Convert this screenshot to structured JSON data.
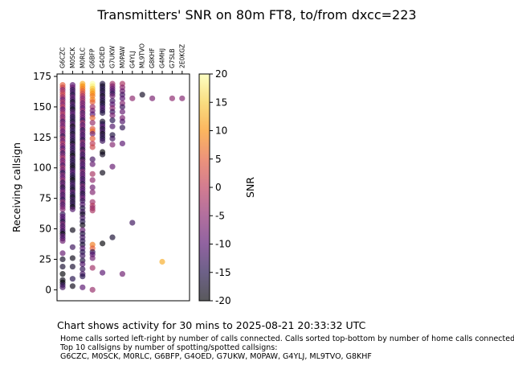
{
  "title": "Transmitters' SNR on 80m FT8, to/from dxcc=223",
  "footer": "Chart shows activity for 30 mins to 2025-08-21 20:33:32 UTC",
  "notes": [
    "Home calls sorted left-right by number of calls connected. Calls sorted top-bottom by number of home calls connected.",
    "Top 10 callsigns by number of spotting/spotted callsigns:",
    "G6CZC, M0SCK, M0RLC, G6BFP, G4OED, G7UKW, M0PAW, G4YLJ, ML9TVO, G8KHF"
  ],
  "chart_data": {
    "type": "scatter",
    "ylabel": "Receiving callsign",
    "ylim": [
      -9,
      177
    ],
    "yticks": [
      0,
      25,
      50,
      75,
      100,
      125,
      150,
      175
    ],
    "x_categories": [
      "G6CZC",
      "M0SCK",
      "M0RLC",
      "G6BFP",
      "G4OED",
      "G7UKW",
      "M0PAW",
      "G4YLJ",
      "ML9TVO",
      "G8KHF",
      "G4MHJ",
      "G7SLB",
      "2E0KGZ"
    ],
    "colorbar": {
      "label": "SNR",
      "min": -20,
      "max": 20,
      "ticks": [
        20,
        15,
        10,
        5,
        0,
        -5,
        -10,
        -15,
        -20
      ],
      "colormap": "inferno"
    },
    "columns": [
      {
        "callsign": "G6CZC",
        "points": [
          [
            168,
            5
          ],
          [
            166,
            2
          ],
          [
            164,
            -5
          ],
          [
            162,
            0
          ],
          [
            160,
            2
          ],
          [
            158,
            -3
          ],
          [
            156,
            -8
          ],
          [
            154,
            -2
          ],
          [
            152,
            -6
          ],
          [
            150,
            0
          ],
          [
            148,
            -10
          ],
          [
            146,
            -4
          ],
          [
            144,
            -1
          ],
          [
            142,
            -7
          ],
          [
            140,
            -3
          ],
          [
            138,
            -12
          ],
          [
            136,
            -5
          ],
          [
            134,
            -8
          ],
          [
            132,
            -2
          ],
          [
            130,
            -10
          ],
          [
            128,
            -6
          ],
          [
            126,
            -14
          ],
          [
            124,
            -3
          ],
          [
            122,
            -9
          ],
          [
            120,
            -1
          ],
          [
            118,
            -7
          ],
          [
            116,
            -11
          ],
          [
            114,
            -4
          ],
          [
            112,
            -13
          ],
          [
            110,
            -6
          ],
          [
            108,
            -2
          ],
          [
            106,
            -9
          ],
          [
            104,
            -5
          ],
          [
            102,
            -12
          ],
          [
            100,
            -3
          ],
          [
            98,
            -8
          ],
          [
            96,
            -15
          ],
          [
            94,
            -6
          ],
          [
            92,
            -10
          ],
          [
            90,
            -4
          ],
          [
            88,
            -14
          ],
          [
            86,
            -8
          ],
          [
            84,
            -17
          ],
          [
            82,
            -11
          ],
          [
            80,
            -7
          ],
          [
            78,
            -13
          ],
          [
            76,
            -9
          ],
          [
            74,
            -15
          ],
          [
            72,
            -5
          ],
          [
            70,
            -12
          ],
          [
            68,
            -8
          ],
          [
            66,
            -6
          ],
          [
            62,
            -14
          ],
          [
            60,
            -10
          ],
          [
            58,
            -11
          ],
          [
            56,
            -16
          ],
          [
            54,
            -7
          ],
          [
            52,
            -13
          ],
          [
            50,
            -9
          ],
          [
            48,
            -14
          ],
          [
            46,
            -20
          ],
          [
            44,
            -10
          ],
          [
            42,
            -12
          ],
          [
            40,
            -8
          ],
          [
            30,
            -9
          ],
          [
            25,
            -18
          ],
          [
            19,
            -17
          ],
          [
            13,
            -20
          ],
          [
            8,
            -19
          ],
          [
            6,
            -20
          ],
          [
            4,
            -14
          ],
          [
            2,
            -12
          ]
        ]
      },
      {
        "callsign": "M0SCK",
        "points": [
          [
            168,
            -10
          ],
          [
            166,
            -8
          ],
          [
            164,
            -14
          ],
          [
            162,
            -12
          ],
          [
            160,
            -16
          ],
          [
            158,
            -9
          ],
          [
            156,
            -13
          ],
          [
            154,
            -18
          ],
          [
            152,
            -11
          ],
          [
            150,
            -15
          ],
          [
            148,
            -19
          ],
          [
            146,
            -12
          ],
          [
            144,
            -10
          ],
          [
            142,
            -16
          ],
          [
            140,
            -14
          ],
          [
            138,
            -17
          ],
          [
            136,
            -11
          ],
          [
            134,
            -20
          ],
          [
            132,
            -13
          ],
          [
            130,
            -15
          ],
          [
            128,
            -18
          ],
          [
            126,
            -12
          ],
          [
            124,
            -14
          ],
          [
            122,
            -16
          ],
          [
            120,
            -19
          ],
          [
            118,
            -11
          ],
          [
            116,
            -15
          ],
          [
            114,
            -13
          ],
          [
            112,
            -17
          ],
          [
            110,
            -20
          ],
          [
            108,
            -12
          ],
          [
            106,
            -16
          ],
          [
            104,
            -14
          ],
          [
            102,
            -18
          ],
          [
            100,
            -19
          ],
          [
            98,
            -13
          ],
          [
            96,
            -11
          ],
          [
            94,
            -15
          ],
          [
            92,
            -17
          ],
          [
            90,
            -20
          ],
          [
            88,
            -14
          ],
          [
            86,
            -12
          ],
          [
            84,
            -16
          ],
          [
            82,
            -18
          ],
          [
            80,
            -10
          ],
          [
            78,
            -15
          ],
          [
            76,
            -19
          ],
          [
            74,
            -13
          ],
          [
            72,
            -17
          ],
          [
            70,
            -14
          ],
          [
            68,
            -20
          ],
          [
            66,
            -11
          ],
          [
            49,
            -19
          ],
          [
            35,
            -13
          ],
          [
            26,
            -19
          ],
          [
            19,
            -17
          ],
          [
            9,
            -15
          ],
          [
            3,
            -19
          ]
        ]
      },
      {
        "callsign": "M0RLC",
        "points": [
          [
            169,
            12
          ],
          [
            167,
            10
          ],
          [
            165,
            8
          ],
          [
            163,
            5
          ],
          [
            161,
            2
          ],
          [
            159,
            -2
          ],
          [
            157,
            -5
          ],
          [
            155,
            -3
          ],
          [
            153,
            -8
          ],
          [
            151,
            -6
          ],
          [
            149,
            -10
          ],
          [
            147,
            -4
          ],
          [
            145,
            -12
          ],
          [
            143,
            -7
          ],
          [
            141,
            -9
          ],
          [
            139,
            -14
          ],
          [
            137,
            -3
          ],
          [
            135,
            -11
          ],
          [
            133,
            -6
          ],
          [
            131,
            -15
          ],
          [
            129,
            -8
          ],
          [
            127,
            -13
          ],
          [
            125,
            -10
          ],
          [
            123,
            -16
          ],
          [
            121,
            -5
          ],
          [
            119,
            -12
          ],
          [
            117,
            -9
          ],
          [
            115,
            -17
          ],
          [
            113,
            -7
          ],
          [
            111,
            -14
          ],
          [
            109,
            -11
          ],
          [
            107,
            -18
          ],
          [
            105,
            -8
          ],
          [
            103,
            -13
          ],
          [
            101,
            -10
          ],
          [
            99,
            -15
          ],
          [
            97,
            -6
          ],
          [
            95,
            -12
          ],
          [
            93,
            -9
          ],
          [
            91,
            -14
          ],
          [
            89,
            -11
          ],
          [
            87,
            -16
          ],
          [
            85,
            -7
          ],
          [
            83,
            -13
          ],
          [
            81,
            -10
          ],
          [
            79,
            -17
          ],
          [
            77,
            -12
          ],
          [
            75,
            -8
          ],
          [
            73,
            -14
          ],
          [
            70,
            -11
          ],
          [
            67,
            -16
          ],
          [
            64,
            -13
          ],
          [
            62,
            -18
          ],
          [
            59,
            -12
          ],
          [
            56,
            -15
          ],
          [
            53,
            -19
          ],
          [
            49,
            -9
          ],
          [
            46,
            -16
          ],
          [
            43,
            -12
          ],
          [
            40,
            -14
          ],
          [
            37,
            -17
          ],
          [
            34,
            -10
          ],
          [
            31,
            -15
          ],
          [
            28,
            -13
          ],
          [
            24,
            -16
          ],
          [
            21,
            -11
          ],
          [
            17,
            -14
          ],
          [
            13,
            -12
          ],
          [
            11,
            -15
          ],
          [
            2,
            -10
          ]
        ]
      },
      {
        "callsign": "G6BFP",
        "points": [
          [
            169,
            20
          ],
          [
            167,
            18
          ],
          [
            165,
            14
          ],
          [
            163,
            12
          ],
          [
            161,
            10
          ],
          [
            159,
            8
          ],
          [
            156,
            9
          ],
          [
            154,
            5
          ],
          [
            150,
            -3
          ],
          [
            147,
            -7
          ],
          [
            144,
            -10
          ],
          [
            141,
            6
          ],
          [
            137,
            -4
          ],
          [
            132,
            4
          ],
          [
            130,
            7
          ],
          [
            128,
            -8
          ],
          [
            124,
            5
          ],
          [
            120,
            0
          ],
          [
            117,
            2
          ],
          [
            107,
            -12
          ],
          [
            103,
            -9
          ],
          [
            95,
            -2
          ],
          [
            90,
            -5
          ],
          [
            84,
            -8
          ],
          [
            80,
            -6
          ],
          [
            72,
            -3
          ],
          [
            69,
            -1
          ],
          [
            67,
            -4
          ],
          [
            65,
            -2
          ],
          [
            37,
            8
          ],
          [
            34,
            5
          ],
          [
            31,
            -14
          ],
          [
            29,
            -10
          ],
          [
            26,
            -8
          ],
          [
            18,
            -3
          ],
          [
            0,
            -4
          ]
        ]
      },
      {
        "callsign": "G4OED",
        "points": [
          [
            169,
            -16
          ],
          [
            167,
            -18
          ],
          [
            165,
            -15
          ],
          [
            163,
            -17
          ],
          [
            161,
            -14
          ],
          [
            159,
            -19
          ],
          [
            157,
            -13
          ],
          [
            155,
            -16
          ],
          [
            153,
            -18
          ],
          [
            151,
            -15
          ],
          [
            149,
            -11
          ],
          [
            147,
            -14
          ],
          [
            145,
            -16
          ],
          [
            138,
            -18
          ],
          [
            136,
            -15
          ],
          [
            134,
            -10
          ],
          [
            132,
            -17
          ],
          [
            130,
            -12
          ],
          [
            128,
            -19
          ],
          [
            126,
            -14
          ],
          [
            124,
            -16
          ],
          [
            122,
            -13
          ],
          [
            113,
            -20
          ],
          [
            111,
            -18
          ],
          [
            96,
            -19
          ],
          [
            38,
            -20
          ],
          [
            14,
            -10
          ]
        ]
      },
      {
        "callsign": "G7UKW",
        "points": [
          [
            169,
            -3
          ],
          [
            167,
            -6
          ],
          [
            165,
            -9
          ],
          [
            163,
            -11
          ],
          [
            161,
            -14
          ],
          [
            159,
            -8
          ],
          [
            155,
            -12
          ],
          [
            152,
            -10
          ],
          [
            149,
            -5
          ],
          [
            146,
            -13
          ],
          [
            143,
            -7
          ],
          [
            139,
            -15
          ],
          [
            134,
            -11
          ],
          [
            127,
            -16
          ],
          [
            124,
            -13
          ],
          [
            119,
            -6
          ],
          [
            101,
            -9
          ],
          [
            43,
            -17
          ]
        ]
      },
      {
        "callsign": "M0PAW",
        "points": [
          [
            169,
            -2
          ],
          [
            166,
            -5
          ],
          [
            163,
            -8
          ],
          [
            160,
            -12
          ],
          [
            157,
            -10
          ],
          [
            153,
            -6
          ],
          [
            150,
            -13
          ],
          [
            146,
            -9
          ],
          [
            141,
            -7
          ],
          [
            138,
            -11
          ],
          [
            133,
            -14
          ],
          [
            120,
            -10
          ],
          [
            13,
            -8
          ]
        ]
      },
      {
        "callsign": "G4YLJ",
        "points": [
          [
            157,
            -5
          ],
          [
            55,
            -13
          ]
        ]
      },
      {
        "callsign": "ML9TVO",
        "points": [
          [
            160,
            -18
          ]
        ]
      },
      {
        "callsign": "G8KHF",
        "points": [
          [
            157,
            -7
          ]
        ]
      },
      {
        "callsign": "G4MHJ",
        "points": [
          [
            23,
            12
          ]
        ]
      },
      {
        "callsign": "G7SLB",
        "points": [
          [
            157,
            -5
          ]
        ]
      },
      {
        "callsign": "2E0KGZ",
        "points": [
          [
            157,
            -6
          ]
        ]
      }
    ]
  }
}
